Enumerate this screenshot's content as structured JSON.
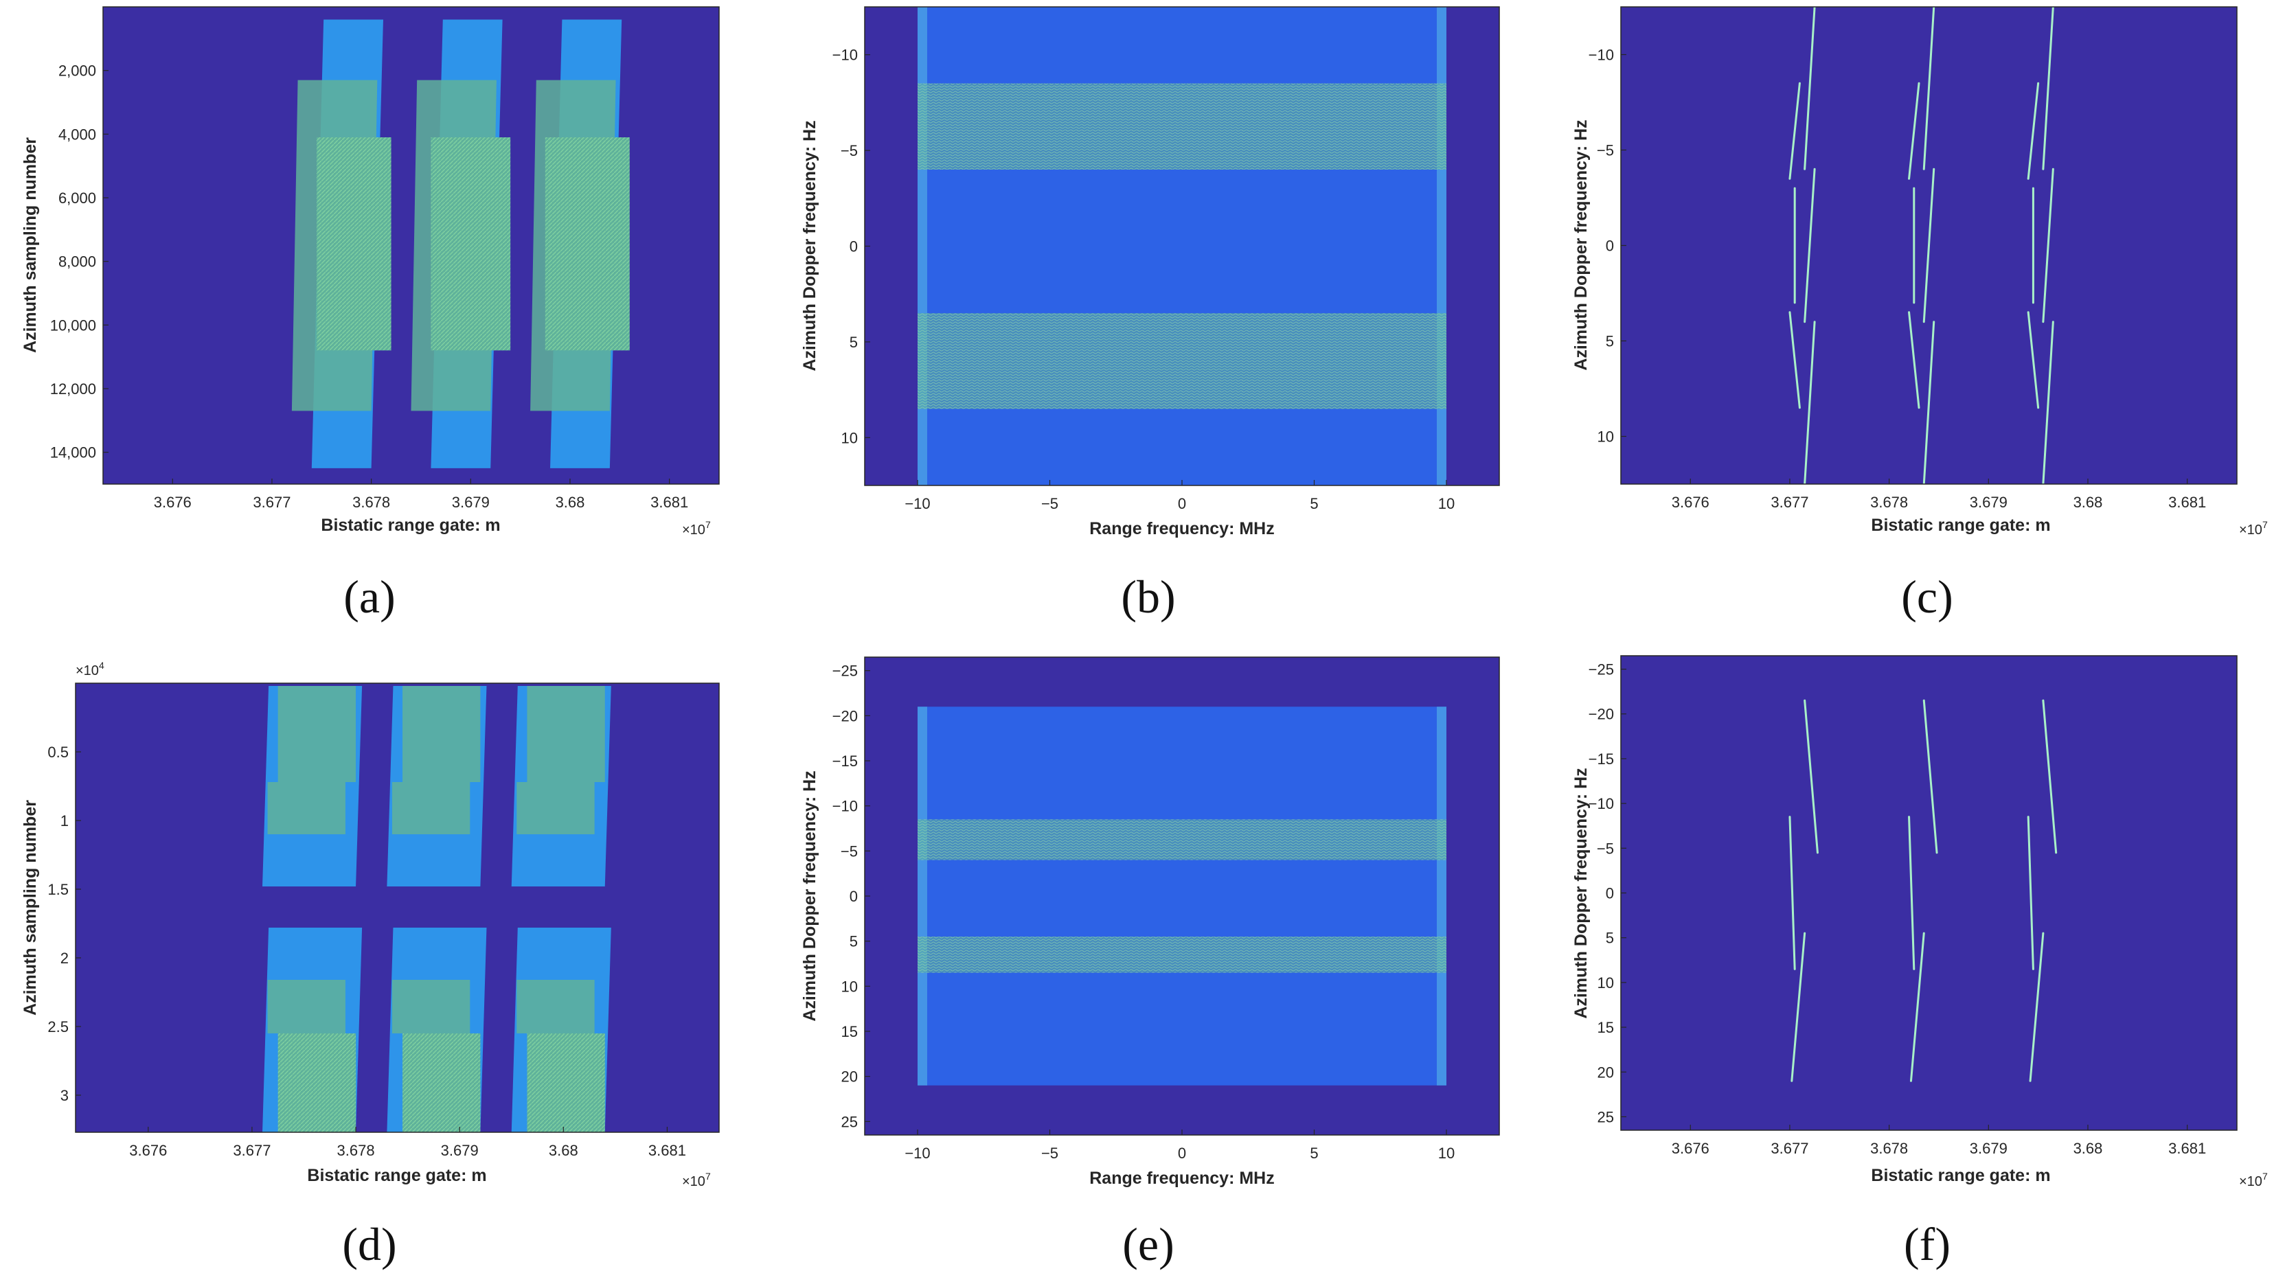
{
  "colors": {
    "background": "#3b2ea3",
    "light_blue": "#2e94ea",
    "mid_blue": "#2d62e6",
    "green": "#5fb29a",
    "green_texture": "#7fd0a0",
    "streak": "#a8f0c8",
    "axis": "#262626"
  },
  "chart_data": [
    {
      "id": "a",
      "caption": "(a)",
      "type": "heatmap",
      "xlabel": "Bistatic range gate: m",
      "ylabel": "Azimuth sampling number",
      "x_exponent_base": "×10",
      "x_exponent_power": "7",
      "y_exponent_base": "",
      "y_exponent_power": "",
      "xlim": [
        3.6753,
        3.6815
      ],
      "ylim": [
        15000,
        0
      ],
      "y_reversed": true,
      "xticks": [
        3.676,
        3.677,
        3.678,
        3.679,
        3.68,
        3.681
      ],
      "xtick_labels": [
        "3.676",
        "3.677",
        "3.678",
        "3.679",
        "3.68",
        "3.681"
      ],
      "yticks": [
        2000,
        4000,
        6000,
        8000,
        10000,
        12000,
        14000
      ],
      "ytick_labels": [
        "2,000",
        "4,000",
        "6,000",
        "8,000",
        "10,000",
        "12,000",
        "14,000"
      ],
      "targets": [
        {
          "layers": [
            {
              "shade": "light",
              "x": [
                3.6774,
                3.678
              ],
              "y": [
                400,
                14500
              ],
              "skew": 0.00012
            },
            {
              "shade": "green",
              "x": [
                3.6772,
                3.678
              ],
              "y": [
                2300,
                12700
              ],
              "skew": 6e-05
            },
            {
              "shade": "texture",
              "x": [
                3.67745,
                3.6782
              ],
              "y": [
                4100,
                10800
              ],
              "skew": 0
            }
          ]
        },
        {
          "layers": [
            {
              "shade": "light",
              "x": [
                3.6786,
                3.6792
              ],
              "y": [
                400,
                14500
              ],
              "skew": 0.00012
            },
            {
              "shade": "green",
              "x": [
                3.6784,
                3.6792
              ],
              "y": [
                2300,
                12700
              ],
              "skew": 6e-05
            },
            {
              "shade": "texture",
              "x": [
                3.6786,
                3.6794
              ],
              "y": [
                4100,
                10800
              ],
              "skew": 0
            }
          ]
        },
        {
          "layers": [
            {
              "shade": "light",
              "x": [
                3.6798,
                3.6804
              ],
              "y": [
                400,
                14500
              ],
              "skew": 0.00012
            },
            {
              "shade": "green",
              "x": [
                3.6796,
                3.6804
              ],
              "y": [
                2300,
                12700
              ],
              "skew": 6e-05
            },
            {
              "shade": "texture",
              "x": [
                3.67975,
                3.6806
              ],
              "y": [
                4100,
                10800
              ],
              "skew": 0
            }
          ]
        }
      ]
    },
    {
      "id": "b",
      "caption": "(b)",
      "type": "heatmap",
      "xlabel": "Range frequency: MHz",
      "ylabel": "Azimuth Dopper frequency: Hz",
      "x_exponent_base": "",
      "x_exponent_power": "",
      "y_exponent_base": "",
      "y_exponent_power": "",
      "xlim": [
        -12,
        12
      ],
      "ylim": [
        12.5,
        -12.5
      ],
      "y_reversed": true,
      "xticks": [
        -10,
        -5,
        0,
        5,
        10
      ],
      "xtick_labels": [
        "−10",
        "−5",
        "0",
        "5",
        "10"
      ],
      "yticks": [
        -10,
        -5,
        0,
        5,
        10
      ],
      "ytick_labels": [
        "−10",
        "−5",
        "0",
        "5",
        "10"
      ],
      "support_x": [
        -10,
        10
      ],
      "bands": [
        {
          "y": [
            -8.5,
            -4
          ]
        },
        {
          "y": [
            3.5,
            8.5
          ]
        }
      ]
    },
    {
      "id": "c",
      "caption": "(c)",
      "type": "heatmap",
      "xlabel": "Bistatic range gate: m",
      "ylabel": "Azimuth Dopper frequency: Hz",
      "x_exponent_base": "×10",
      "x_exponent_power": "7",
      "y_exponent_base": "",
      "y_exponent_power": "",
      "xlim": [
        3.6753,
        3.6815
      ],
      "ylim": [
        12.5,
        -12.5
      ],
      "y_reversed": true,
      "xticks": [
        3.676,
        3.677,
        3.678,
        3.679,
        3.68,
        3.681
      ],
      "xtick_labels": [
        "3.676",
        "3.677",
        "3.678",
        "3.679",
        "3.68",
        "3.681"
      ],
      "yticks": [
        -10,
        -5,
        0,
        5,
        10
      ],
      "ytick_labels": [
        "−10",
        "−5",
        "0",
        "5",
        "10"
      ],
      "targets": [
        {
          "segments": [
            [
              [
                3.6771,
                -8.5
              ],
              [
                3.677,
                -3.5
              ]
            ],
            [
              [
                3.67705,
                -3.0
              ],
              [
                3.67705,
                3.0
              ]
            ],
            [
              [
                3.677,
                3.5
              ],
              [
                3.6771,
                8.5
              ]
            ],
            [
              [
                3.67725,
                -12.5
              ],
              [
                3.67715,
                -4.0
              ]
            ],
            [
              [
                3.67725,
                4.0
              ],
              [
                3.67715,
                12.5
              ]
            ],
            [
              [
                3.67725,
                -4.0
              ],
              [
                3.67715,
                4.0
              ]
            ]
          ]
        },
        {
          "segments": [
            [
              [
                3.6783,
                -8.5
              ],
              [
                3.6782,
                -3.5
              ]
            ],
            [
              [
                3.67825,
                -3.0
              ],
              [
                3.67825,
                3.0
              ]
            ],
            [
              [
                3.6782,
                3.5
              ],
              [
                3.6783,
                8.5
              ]
            ],
            [
              [
                3.67845,
                -12.5
              ],
              [
                3.67835,
                -4.0
              ]
            ],
            [
              [
                3.67845,
                4.0
              ],
              [
                3.67835,
                12.5
              ]
            ],
            [
              [
                3.67845,
                -4.0
              ],
              [
                3.67835,
                4.0
              ]
            ]
          ]
        },
        {
          "segments": [
            [
              [
                3.6795,
                -8.5
              ],
              [
                3.6794,
                -3.5
              ]
            ],
            [
              [
                3.67945,
                -3.0
              ],
              [
                3.67945,
                3.0
              ]
            ],
            [
              [
                3.6794,
                3.5
              ],
              [
                3.6795,
                8.5
              ]
            ],
            [
              [
                3.67965,
                -12.5
              ],
              [
                3.67955,
                -4.0
              ]
            ],
            [
              [
                3.67965,
                4.0
              ],
              [
                3.67955,
                12.5
              ]
            ],
            [
              [
                3.67965,
                -4.0
              ],
              [
                3.67955,
                4.0
              ]
            ]
          ]
        }
      ]
    },
    {
      "id": "d",
      "caption": "(d)",
      "type": "heatmap",
      "xlabel": "Bistatic range gate: m",
      "ylabel": "Azimuth sampling number",
      "x_exponent_base": "×10",
      "x_exponent_power": "7",
      "y_exponent_base": "×10",
      "y_exponent_power": "4",
      "xlim": [
        3.6753,
        3.6815
      ],
      "ylim": [
        3.27,
        0
      ],
      "y_reversed": true,
      "xticks": [
        3.676,
        3.677,
        3.678,
        3.679,
        3.68,
        3.681
      ],
      "xtick_labels": [
        "3.676",
        "3.677",
        "3.678",
        "3.679",
        "3.68",
        "3.681"
      ],
      "yticks": [
        0.5,
        1,
        1.5,
        2,
        2.5,
        3
      ],
      "ytick_labels": [
        "0.5",
        "1",
        "1.5",
        "2",
        "2.5",
        "3"
      ],
      "targets": [
        {
          "layers": [
            {
              "shade": "light",
              "x": [
                3.6771,
                3.678
              ],
              "y": [
                0.02,
                1.48
              ],
              "skew": 6e-05
            },
            {
              "shade": "light",
              "x": [
                3.6771,
                3.678
              ],
              "y": [
                1.78,
                3.27
              ],
              "skew": 6e-05
            },
            {
              "shade": "green",
              "x": [
                3.67725,
                3.678
              ],
              "y": [
                0.02,
                0.72
              ],
              "skew": 0
            },
            {
              "shade": "green",
              "x": [
                3.67715,
                3.6779
              ],
              "y": [
                0.72,
                1.1
              ],
              "skew": 0
            },
            {
              "shade": "green",
              "x": [
                3.67715,
                3.6779
              ],
              "y": [
                2.16,
                2.55
              ],
              "skew": 0
            },
            {
              "shade": "texture",
              "x": [
                3.67725,
                3.678
              ],
              "y": [
                2.55,
                3.27
              ],
              "skew": 0
            }
          ]
        },
        {
          "layers": [
            {
              "shade": "light",
              "x": [
                3.6783,
                3.6792
              ],
              "y": [
                0.02,
                1.48
              ],
              "skew": 6e-05
            },
            {
              "shade": "light",
              "x": [
                3.6783,
                3.6792
              ],
              "y": [
                1.78,
                3.27
              ],
              "skew": 6e-05
            },
            {
              "shade": "green",
              "x": [
                3.67845,
                3.6792
              ],
              "y": [
                0.02,
                0.72
              ],
              "skew": 0
            },
            {
              "shade": "green",
              "x": [
                3.67835,
                3.6791
              ],
              "y": [
                0.72,
                1.1
              ],
              "skew": 0
            },
            {
              "shade": "green",
              "x": [
                3.67835,
                3.6791
              ],
              "y": [
                2.16,
                2.55
              ],
              "skew": 0
            },
            {
              "shade": "texture",
              "x": [
                3.67845,
                3.6792
              ],
              "y": [
                2.55,
                3.27
              ],
              "skew": 0
            }
          ]
        },
        {
          "layers": [
            {
              "shade": "light",
              "x": [
                3.6795,
                3.6804
              ],
              "y": [
                0.02,
                1.48
              ],
              "skew": 6e-05
            },
            {
              "shade": "light",
              "x": [
                3.6795,
                3.6804
              ],
              "y": [
                1.78,
                3.27
              ],
              "skew": 6e-05
            },
            {
              "shade": "green",
              "x": [
                3.67965,
                3.6804
              ],
              "y": [
                0.02,
                0.72
              ],
              "skew": 0
            },
            {
              "shade": "green",
              "x": [
                3.67955,
                3.6803
              ],
              "y": [
                0.72,
                1.1
              ],
              "skew": 0
            },
            {
              "shade": "green",
              "x": [
                3.67955,
                3.6803
              ],
              "y": [
                2.16,
                2.55
              ],
              "skew": 0
            },
            {
              "shade": "texture",
              "x": [
                3.67965,
                3.6804
              ],
              "y": [
                2.55,
                3.27
              ],
              "skew": 0
            }
          ]
        }
      ]
    },
    {
      "id": "e",
      "caption": "(e)",
      "type": "heatmap",
      "xlabel": "Range frequency: MHz",
      "ylabel": "Azimuth Dopper frequency: Hz",
      "x_exponent_base": "",
      "x_exponent_power": "",
      "y_exponent_base": "",
      "y_exponent_power": "",
      "xlim": [
        -12,
        12
      ],
      "ylim": [
        26.5,
        -26.5
      ],
      "y_reversed": true,
      "xticks": [
        -10,
        -5,
        0,
        5,
        10
      ],
      "xtick_labels": [
        "−10",
        "−5",
        "0",
        "5",
        "10"
      ],
      "yticks": [
        -25,
        -20,
        -15,
        -10,
        -5,
        0,
        5,
        10,
        15,
        20,
        25
      ],
      "ytick_labels": [
        "−25",
        "−20",
        "−15",
        "−10",
        "−5",
        "0",
        "5",
        "10",
        "15",
        "20",
        "25"
      ],
      "support_x": [
        -10,
        10
      ],
      "support_y": [
        -21,
        21
      ],
      "bands": [
        {
          "y": [
            -8.5,
            -4
          ]
        },
        {
          "y": [
            4.5,
            8.5
          ]
        }
      ]
    },
    {
      "id": "f",
      "caption": "(f)",
      "type": "heatmap",
      "xlabel": "Bistatic range gate: m",
      "ylabel": "Azimuth Dopper frequency: Hz",
      "x_exponent_base": "×10",
      "x_exponent_power": "7",
      "y_exponent_base": "",
      "y_exponent_power": "",
      "xlim": [
        3.6753,
        3.6815
      ],
      "ylim": [
        26.5,
        -26.5
      ],
      "y_reversed": true,
      "xticks": [
        3.676,
        3.677,
        3.678,
        3.679,
        3.68,
        3.681
      ],
      "xtick_labels": [
        "3.676",
        "3.677",
        "3.678",
        "3.679",
        "3.68",
        "3.681"
      ],
      "yticks": [
        -25,
        -20,
        -15,
        -10,
        -5,
        0,
        5,
        10,
        15,
        20,
        25
      ],
      "ytick_labels": [
        "−25",
        "−20",
        "−15",
        "−10",
        "−5",
        "0",
        "5",
        "10",
        "15",
        "20",
        "25"
      ],
      "targets": [
        {
          "segments": [
            [
              [
                3.67715,
                -21.5
              ],
              [
                3.67728,
                -4.5
              ]
            ],
            [
              [
                3.67715,
                4.5
              ],
              [
                3.67702,
                21.0
              ]
            ],
            [
              [
                3.677,
                -8.5
              ],
              [
                3.67705,
                8.5
              ]
            ]
          ]
        },
        {
          "segments": [
            [
              [
                3.67835,
                -21.5
              ],
              [
                3.67848,
                -4.5
              ]
            ],
            [
              [
                3.67835,
                4.5
              ],
              [
                3.67822,
                21.0
              ]
            ],
            [
              [
                3.6782,
                -8.5
              ],
              [
                3.67825,
                8.5
              ]
            ]
          ]
        },
        {
          "segments": [
            [
              [
                3.67955,
                -21.5
              ],
              [
                3.67968,
                -4.5
              ]
            ],
            [
              [
                3.67955,
                4.5
              ],
              [
                3.67942,
                21.0
              ]
            ],
            [
              [
                3.6794,
                -8.5
              ],
              [
                3.67945,
                8.5
              ]
            ]
          ]
        }
      ]
    }
  ]
}
